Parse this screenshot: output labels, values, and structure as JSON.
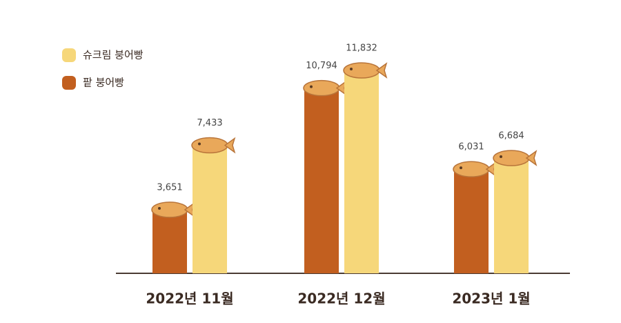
{
  "chart_data": {
    "type": "bar",
    "categories": [
      "2022년 11월",
      "2022년 12월",
      "2023년 1월"
    ],
    "series": [
      {
        "name": "팥 붕어빵",
        "color": "#c25f1f",
        "values": [
          3651,
          10794,
          6031
        ],
        "value_labels": [
          "3,651",
          "10,794",
          "6,031"
        ]
      },
      {
        "name": "슈크림 붕어빵",
        "color": "#f6d77a",
        "values": [
          7433,
          11832,
          6684
        ],
        "value_labels": [
          "7,433",
          "11,832",
          "6,684"
        ]
      }
    ]
  }
}
